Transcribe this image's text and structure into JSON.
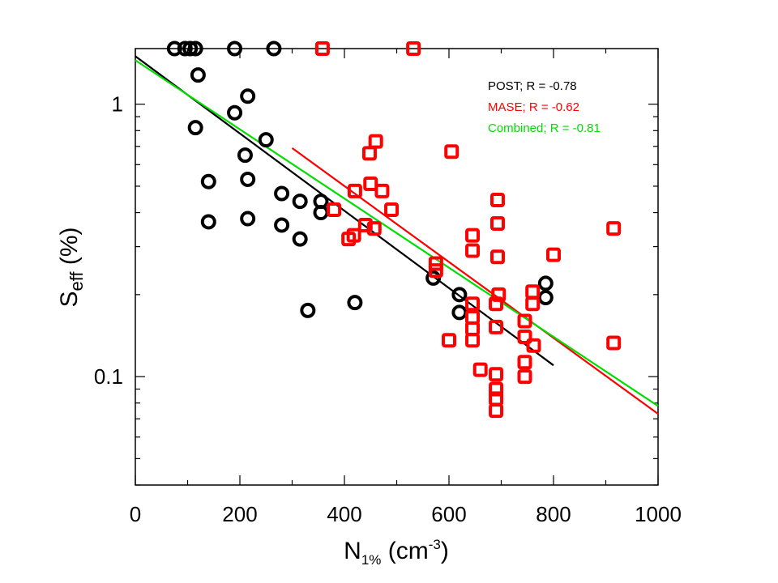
{
  "chart_data": {
    "type": "scatter",
    "xlabel": {
      "main": "N",
      "sub": "1%",
      "unit_pre": " (cm",
      "unit_sup": "-3",
      "unit_post": ")"
    },
    "ylabel": {
      "main": "S",
      "sub": "eff",
      "unit": " (%)"
    },
    "xlim": [
      0,
      1000
    ],
    "ylim": [
      0.04,
      1.6
    ],
    "y_scale": "log",
    "x_ticks": [
      0,
      200,
      400,
      600,
      800,
      1000
    ],
    "x_tick_labels": [
      "0",
      "200",
      "400",
      "600",
      "800",
      "1000"
    ],
    "y_ticks": [
      0.1,
      1
    ],
    "y_tick_labels": [
      "0.1",
      "1"
    ],
    "grid": false,
    "legend_position": "top-right",
    "legend": [
      {
        "text": "POST; R = -0.78",
        "color": "#000000"
      },
      {
        "text": "MASE; R = -0.62",
        "color": "#ff0000"
      },
      {
        "text": "Combined; R = -0.81",
        "color": "#00dd00"
      }
    ],
    "series": [
      {
        "marker": "circle",
        "color": "#000000",
        "points": [
          [
            75,
            1.6
          ],
          [
            95,
            1.6
          ],
          [
            105,
            1.6
          ],
          [
            115,
            1.6
          ],
          [
            120,
            1.28
          ],
          [
            115,
            0.82
          ],
          [
            190,
            1.6
          ],
          [
            265,
            1.6
          ],
          [
            215,
            1.07
          ],
          [
            190,
            0.93
          ],
          [
            250,
            0.74
          ],
          [
            210,
            0.65
          ],
          [
            215,
            0.53
          ],
          [
            140,
            0.52
          ],
          [
            140,
            0.37
          ],
          [
            215,
            0.38
          ],
          [
            280,
            0.47
          ],
          [
            315,
            0.44
          ],
          [
            355,
            0.44
          ],
          [
            355,
            0.4
          ],
          [
            280,
            0.36
          ],
          [
            315,
            0.32
          ],
          [
            330,
            0.175
          ],
          [
            420,
            0.187
          ],
          [
            570,
            0.23
          ],
          [
            620,
            0.2
          ],
          [
            620,
            0.172
          ],
          [
            785,
            0.22
          ],
          [
            785,
            0.195
          ]
        ]
      },
      {
        "marker": "square",
        "color": "#ff0000",
        "points": [
          [
            358,
            1.6
          ],
          [
            532,
            1.6
          ],
          [
            605,
            0.67
          ],
          [
            460,
            0.73
          ],
          [
            448,
            0.66
          ],
          [
            450,
            0.51
          ],
          [
            420,
            0.48
          ],
          [
            472,
            0.48
          ],
          [
            490,
            0.41
          ],
          [
            380,
            0.41
          ],
          [
            440,
            0.36
          ],
          [
            457,
            0.35
          ],
          [
            418,
            0.33
          ],
          [
            408,
            0.32
          ],
          [
            645,
            0.33
          ],
          [
            645,
            0.29
          ],
          [
            575,
            0.26
          ],
          [
            575,
            0.245
          ],
          [
            693,
            0.445
          ],
          [
            693,
            0.365
          ],
          [
            693,
            0.275
          ],
          [
            695,
            0.2
          ],
          [
            800,
            0.28
          ],
          [
            915,
            0.35
          ],
          [
            600,
            0.136
          ],
          [
            645,
            0.185
          ],
          [
            645,
            0.165
          ],
          [
            645,
            0.15
          ],
          [
            645,
            0.136
          ],
          [
            690,
            0.185
          ],
          [
            690,
            0.152
          ],
          [
            760,
            0.205
          ],
          [
            760,
            0.185
          ],
          [
            762,
            0.13
          ],
          [
            745,
            0.16
          ],
          [
            745,
            0.14
          ],
          [
            745,
            0.113
          ],
          [
            745,
            0.1
          ],
          [
            660,
            0.106
          ],
          [
            690,
            0.102
          ],
          [
            690,
            0.09
          ],
          [
            690,
            0.083
          ],
          [
            690,
            0.075
          ],
          [
            915,
            0.133
          ]
        ]
      }
    ],
    "fit_lines": [
      {
        "color": "#000000",
        "x": [
          0,
          800
        ],
        "y": [
          1.5,
          0.11
        ]
      },
      {
        "color": "#ff0000",
        "x": [
          300,
          1000
        ],
        "y": [
          0.69,
          0.073
        ]
      },
      {
        "color": "#00dd00",
        "x": [
          0,
          1000
        ],
        "y": [
          1.45,
          0.078
        ]
      }
    ]
  }
}
